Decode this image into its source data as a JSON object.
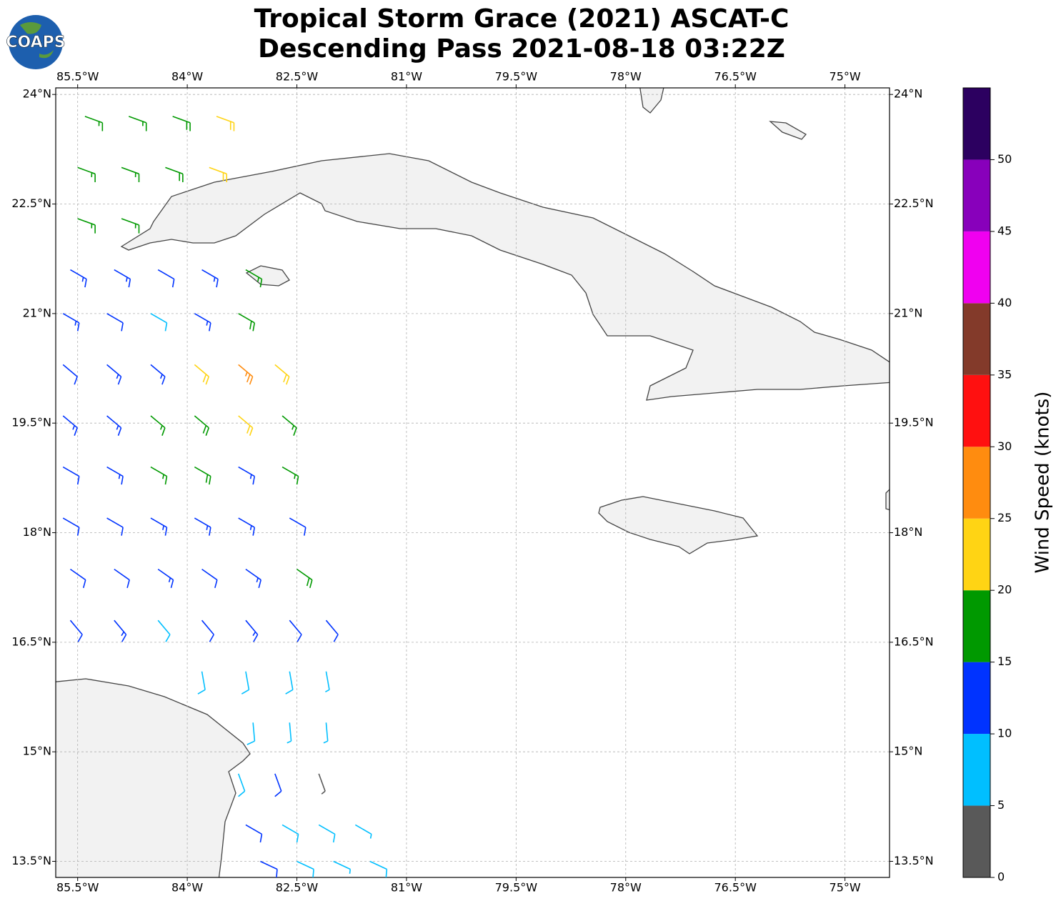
{
  "chart_data": {
    "type": "barbs",
    "title_lines": [
      "Tropical Storm Grace (2021) ASCAT-C",
      "Descending Pass 2021-08-18 03:22Z"
    ],
    "logo_text": "COAPS",
    "xlim": [
      -85.8,
      -74.39
    ],
    "ylim": [
      13.28,
      24.09
    ],
    "xticks": [
      {
        "value": -85.5,
        "label": "85.5°W"
      },
      {
        "value": -84,
        "label": "84°W"
      },
      {
        "value": -82.5,
        "label": "82.5°W"
      },
      {
        "value": -81,
        "label": "81°W"
      },
      {
        "value": -79.5,
        "label": "79.5°W"
      },
      {
        "value": -78,
        "label": "78°W"
      },
      {
        "value": -76.5,
        "label": "76.5°W"
      },
      {
        "value": -75,
        "label": "75°W"
      }
    ],
    "yticks": [
      {
        "value": 13.5,
        "label": "13.5°N"
      },
      {
        "value": 15,
        "label": "15°N"
      },
      {
        "value": 16.5,
        "label": "16.5°N"
      },
      {
        "value": 18,
        "label": "18°N"
      },
      {
        "value": 19.5,
        "label": "19.5°N"
      },
      {
        "value": 21,
        "label": "21°N"
      },
      {
        "value": 22.5,
        "label": "22.5°N"
      },
      {
        "value": 24,
        "label": "24°N"
      }
    ],
    "grid": true,
    "barbs": {
      "lon": [
        -85.4,
        -84.8,
        -84.2,
        -83.6,
        -85.5,
        -84.9,
        -84.3,
        -83.7,
        -85.5,
        -84.9,
        -85.6,
        -85.0,
        -84.4,
        -83.8,
        -83.2,
        -85.7,
        -85.1,
        -84.5,
        -83.9,
        -83.3,
        -85.7,
        -85.1,
        -84.5,
        -83.9,
        -83.3,
        -82.8,
        -85.7,
        -85.1,
        -84.5,
        -83.9,
        -83.3,
        -82.7,
        -85.7,
        -85.1,
        -84.5,
        -83.9,
        -83.3,
        -82.7,
        -85.7,
        -85.1,
        -84.5,
        -83.9,
        -83.3,
        -82.6,
        -85.6,
        -85.0,
        -84.4,
        -83.8,
        -83.2,
        -82.5,
        -85.6,
        -85.0,
        -84.4,
        -83.8,
        -83.2,
        -82.6,
        -82.1,
        -83.8,
        -83.2,
        -82.6,
        -82.1,
        -83.1,
        -82.6,
        -82.1,
        -83.3,
        -82.8,
        -82.2,
        -83.2,
        -82.7,
        -82.2,
        -81.7,
        -83.0,
        -82.5,
        -82.0,
        -81.5
      ],
      "lat": [
        23.7,
        23.7,
        23.7,
        23.7,
        23.0,
        23.0,
        23.0,
        23.0,
        22.3,
        22.3,
        21.6,
        21.6,
        21.6,
        21.6,
        21.6,
        21.0,
        21.0,
        21.0,
        21.0,
        21.0,
        20.3,
        20.3,
        20.3,
        20.3,
        20.3,
        20.3,
        19.6,
        19.6,
        19.6,
        19.6,
        19.6,
        19.6,
        18.9,
        18.9,
        18.9,
        18.9,
        18.9,
        18.9,
        18.2,
        18.2,
        18.2,
        18.2,
        18.2,
        18.2,
        17.5,
        17.5,
        17.5,
        17.5,
        17.5,
        17.5,
        16.8,
        16.8,
        16.8,
        16.8,
        16.8,
        16.8,
        16.8,
        16.1,
        16.1,
        16.1,
        16.1,
        15.4,
        15.4,
        15.4,
        14.7,
        14.7,
        14.7,
        14.0,
        14.0,
        14.0,
        14.0,
        13.5,
        13.5,
        13.5,
        13.5
      ],
      "speed": [
        17,
        17,
        18,
        21,
        16,
        17,
        18,
        22,
        16,
        17,
        13,
        13,
        12,
        14,
        17,
        13,
        12,
        9,
        13,
        18,
        12,
        13,
        14,
        22,
        26,
        21,
        13,
        14,
        16,
        18,
        22,
        17,
        12,
        13,
        17,
        18,
        14,
        17,
        12,
        12,
        13,
        13,
        14,
        12,
        12,
        12,
        13,
        12,
        13,
        18,
        12,
        13,
        8,
        12,
        13,
        12,
        11,
        8,
        9,
        8,
        7,
        8,
        7,
        6,
        8,
        12,
        4,
        12,
        8,
        8,
        7,
        11,
        8,
        7,
        8
      ],
      "direction": [
        110,
        110,
        110,
        110,
        110,
        110,
        110,
        110,
        110,
        110,
        120,
        120,
        120,
        120,
        120,
        120,
        120,
        120,
        120,
        120,
        130,
        130,
        130,
        130,
        130,
        130,
        130,
        130,
        130,
        130,
        130,
        130,
        120,
        120,
        120,
        120,
        120,
        120,
        120,
        120,
        120,
        120,
        120,
        120,
        125,
        125,
        125,
        125,
        125,
        125,
        140,
        140,
        140,
        140,
        140,
        140,
        140,
        170,
        170,
        170,
        170,
        175,
        175,
        175,
        160,
        160,
        160,
        120,
        120,
        120,
        120,
        115,
        115,
        115,
        115
      ]
    },
    "colorbar": {
      "label": "Wind Speed (knots)",
      "bins": [
        0,
        5,
        10,
        15,
        20,
        25,
        30,
        35,
        40,
        45,
        50,
        55
      ],
      "colors": [
        "#595959",
        "#00bfff",
        "#0033ff",
        "#009900",
        "#ffd414",
        "#ff8c0f",
        "#ff1010",
        "#833a2a",
        "#f000f0",
        "#8800bb",
        "#2c0060"
      ],
      "ticks": [
        0,
        5,
        10,
        15,
        20,
        25,
        30,
        35,
        40,
        45,
        50
      ]
    }
  }
}
